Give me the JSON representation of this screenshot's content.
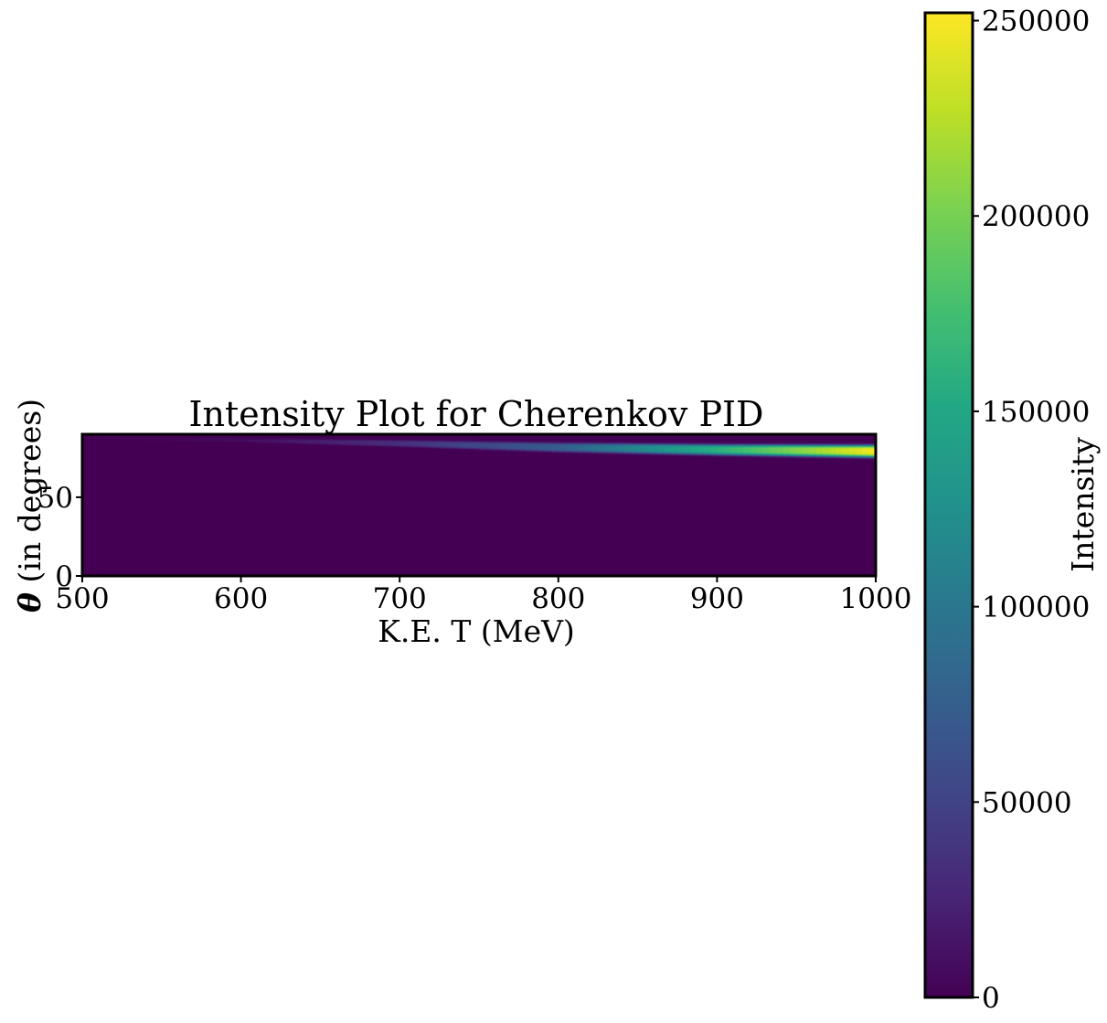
{
  "chart_data": {
    "type": "heatmap",
    "title": "Intensity Plot for Cherenkov PID",
    "xlabel": "K.E. T (MeV)",
    "ylabel_symbol": "θ",
    "ylabel_text": " (in degrees)",
    "colorbar_label": "Intensity",
    "colormap": "viridis",
    "xlim": [
      500,
      1000
    ],
    "ylim": [
      0,
      90
    ],
    "x_ticks": [
      "500",
      "600",
      "700",
      "800",
      "900",
      "1000"
    ],
    "x_tick_values": [
      500,
      600,
      700,
      800,
      900,
      1000
    ],
    "y_ticks": [
      "0",
      "50"
    ],
    "y_tick_values": [
      0,
      50
    ],
    "colorbar_range": [
      0,
      252000
    ],
    "colorbar_ticks": [
      "0",
      "50000",
      "100000",
      "150000",
      "200000",
      "250000"
    ],
    "colorbar_tick_values": [
      0,
      50000,
      100000,
      150000,
      200000,
      250000
    ],
    "band": {
      "description_points_T": [
        500,
        600,
        700,
        800,
        900,
        1000
      ],
      "theta_center": [
        87.5,
        86.5,
        84.5,
        82.0,
        80.5,
        79.5
      ],
      "theta_halfwidth": [
        0.8,
        1.2,
        2.0,
        2.8,
        3.3,
        3.8
      ],
      "peak_intensity": [
        0,
        8000,
        35000,
        75000,
        160000,
        250000
      ]
    }
  }
}
